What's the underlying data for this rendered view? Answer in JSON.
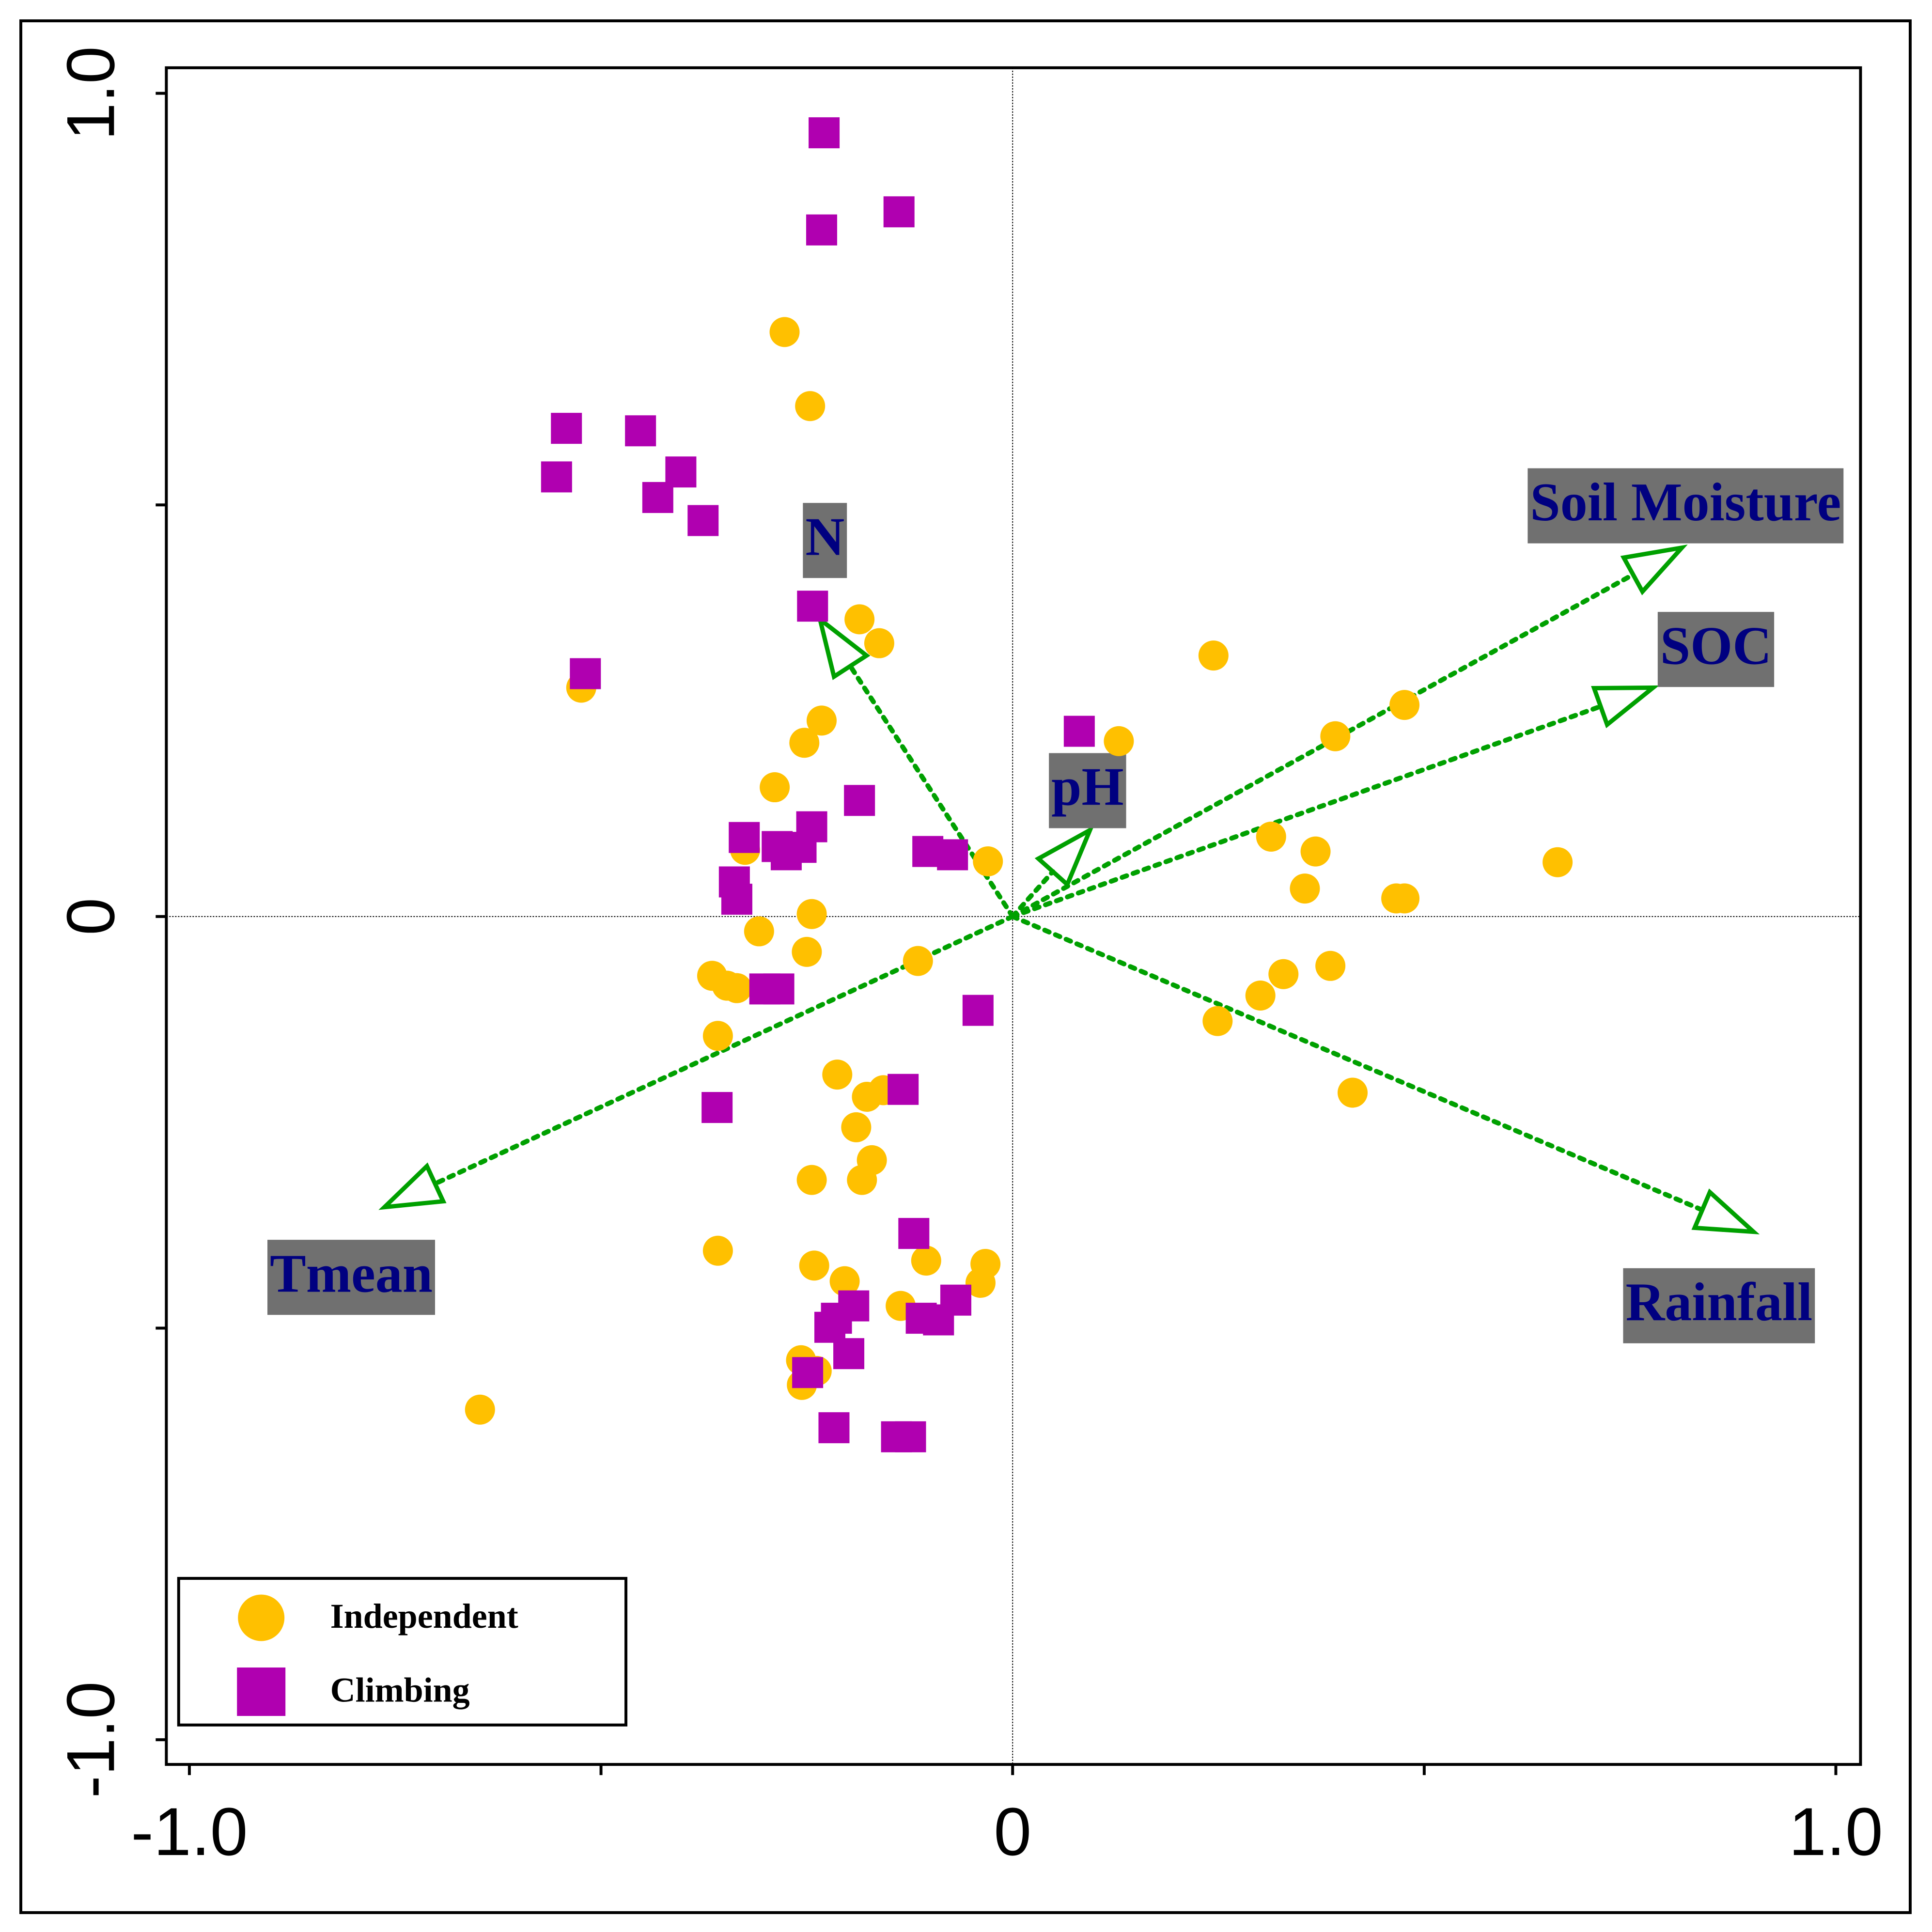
{
  "chart_data": {
    "type": "scatter",
    "xlim": [
      -1.028,
      1.03
    ],
    "ylim": [
      -1.03,
      1.031
    ],
    "xticks": [
      {
        "value": -1,
        "label": "-1.0"
      },
      {
        "value": -0.5,
        "label": null
      },
      0,
      {
        "value": 0.5,
        "label": null
      },
      {
        "value": 1,
        "label": "1.0"
      }
    ],
    "yticks": [
      {
        "value": -1,
        "label": "-1.0"
      },
      {
        "value": -0.5,
        "label": null
      },
      0,
      {
        "value": 0.5,
        "label": null
      },
      {
        "value": 1,
        "label": "1.0"
      }
    ],
    "legend": "lower left",
    "series": [
      {
        "name": "Independent",
        "color": "#ffc000",
        "marker": "circle",
        "x": [
          -0.277,
          -0.246,
          -0.186,
          -0.162,
          -0.524,
          -0.232,
          -0.253,
          -0.289,
          0.129,
          -0.03,
          -0.325,
          -0.244,
          -0.308,
          -0.25,
          -0.115,
          -0.365,
          -0.335,
          -0.347,
          -0.358,
          -0.213,
          -0.157,
          -0.177,
          -0.19,
          -0.171,
          -0.244,
          -0.183,
          -0.358,
          -0.241,
          -0.204,
          -0.105,
          -0.033,
          -0.039,
          -0.136,
          -0.257,
          -0.256,
          -0.238,
          -0.647,
          0.244,
          0.392,
          0.476,
          0.314,
          0.368,
          0.355,
          0.466,
          0.476,
          0.662,
          0.386,
          0.329,
          0.301,
          0.249,
          0.413
        ],
        "values": [
          0.71,
          0.62,
          0.361,
          0.332,
          0.278,
          0.238,
          0.211,
          0.157,
          0.213,
          0.067,
          0.081,
          0.003,
          -0.018,
          -0.043,
          -0.054,
          -0.072,
          -0.087,
          -0.084,
          -0.145,
          -0.192,
          -0.211,
          -0.219,
          -0.256,
          -0.296,
          -0.32,
          -0.32,
          -0.406,
          -0.424,
          -0.443,
          -0.418,
          -0.422,
          -0.445,
          -0.473,
          -0.539,
          -0.569,
          -0.552,
          -0.599,
          0.317,
          0.219,
          0.257,
          0.097,
          0.079,
          0.034,
          0.022,
          0.022,
          0.066,
          -0.06,
          -0.07,
          -0.096,
          -0.127,
          -0.214
        ]
      },
      {
        "name": "Climbing",
        "color": "#b000b0",
        "marker": "square",
        "x": [
          -0.229,
          -0.138,
          -0.232,
          -0.542,
          -0.452,
          -0.403,
          -0.554,
          -0.431,
          -0.376,
          -0.243,
          -0.519,
          0.081,
          -0.186,
          -0.326,
          -0.244,
          -0.286,
          -0.257,
          -0.275,
          -0.103,
          -0.073,
          -0.338,
          -0.335,
          -0.301,
          -0.284,
          -0.042,
          -0.133,
          -0.359,
          -0.12,
          -0.193,
          -0.214,
          -0.222,
          -0.069,
          -0.111,
          -0.09,
          -0.199,
          -0.249,
          -0.217,
          -0.141,
          -0.124
        ],
        "values": [
          0.952,
          0.856,
          0.834,
          0.593,
          0.59,
          0.54,
          0.534,
          0.509,
          0.481,
          0.377,
          0.295,
          0.225,
          0.141,
          0.096,
          0.109,
          0.085,
          0.084,
          0.075,
          0.079,
          0.075,
          0.042,
          0.021,
          -0.088,
          -0.088,
          -0.114,
          -0.21,
          -0.232,
          -0.385,
          -0.473,
          -0.488,
          -0.499,
          -0.466,
          -0.488,
          -0.49,
          -0.531,
          -0.554,
          -0.621,
          -0.632,
          -0.632
        ]
      }
    ],
    "arrows": [
      {
        "label": "Soil Moisture",
        "x": 0.813,
        "y": 0.448
      },
      {
        "label": "SOC",
        "x": 0.778,
        "y": 0.278
      },
      {
        "label": "Rainfall",
        "x": 0.9,
        "y": -0.383
      },
      {
        "label": "Tmean",
        "x": -0.763,
        "y": -0.353
      },
      {
        "label": "N",
        "x": -0.234,
        "y": 0.361
      },
      {
        "label": "pH",
        "x": 0.094,
        "y": 0.105
      }
    ],
    "arrow_color": "#00a000",
    "label_box_color": "#707070",
    "label_color": "#000080"
  }
}
